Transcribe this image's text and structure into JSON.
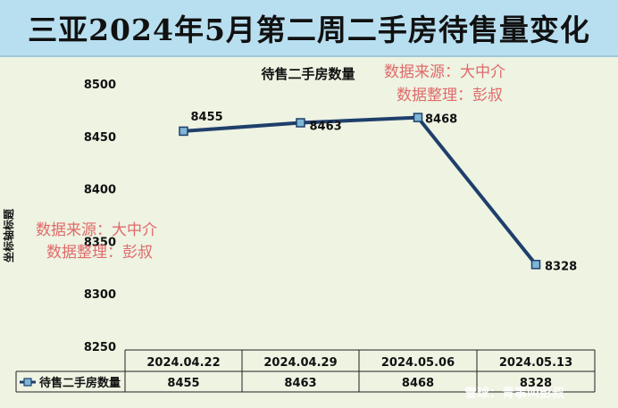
{
  "banner": {
    "title": "三亚2024年5月第二周二手房待售量变化"
  },
  "chart_data": {
    "type": "line",
    "title": "待售二手房数量",
    "ylabel": "坐标轴标题",
    "xlabel": "",
    "categories": [
      "2024.04.22",
      "2024.04.29",
      "2024.05.06",
      "2024.05.13"
    ],
    "series": [
      {
        "name": "待售二手房数量",
        "values": [
          8455,
          8463,
          8468,
          8328
        ],
        "color": "#1f3f6b"
      }
    ],
    "ylim": [
      8250,
      8500
    ],
    "yticks": [
      8250,
      8300,
      8350,
      8400,
      8450,
      8500
    ],
    "grid": false,
    "legend": "data-table"
  },
  "watermarks": {
    "source_line": "数据来源：大中介",
    "editor_line": "数据整理：彭叔"
  },
  "corner_watermark": "雪球：青事叫彭叔"
}
